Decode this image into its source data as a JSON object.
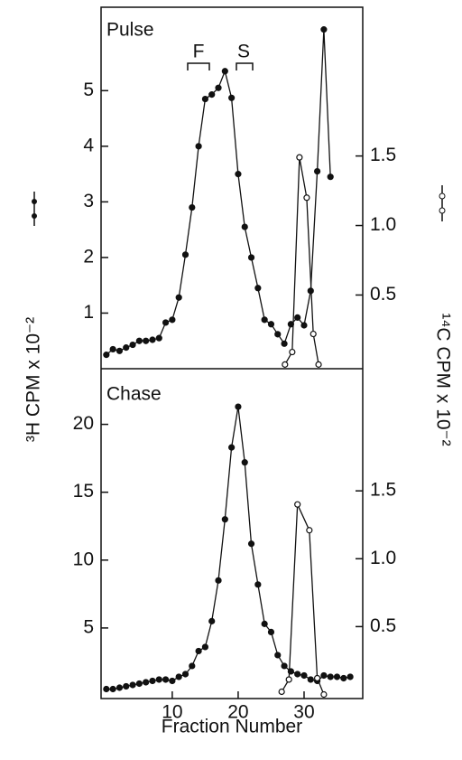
{
  "chart_data": [
    {
      "type": "line",
      "title": "Pulse",
      "annotations": [
        "F",
        "S"
      ],
      "ylabel": "³H CPM x 10⁻²",
      "y2label": "¹⁴C CPM x 10⁻²",
      "xlim": [
        -0.8,
        38.9
      ],
      "ylim": [
        0,
        6.5
      ],
      "yticks": [
        1,
        2,
        3,
        4,
        5
      ],
      "y2lim": [
        -0.03,
        2.57
      ],
      "y2ticks": [
        0.5,
        {
          "value": 1,
          "label": "1.0"
        },
        1.5
      ],
      "series": [
        {
          "color": "#111111",
          "marker": "filled",
          "x": [
            0,
            1,
            2,
            3,
            4,
            5,
            6,
            7,
            8,
            9,
            10,
            11,
            12,
            13,
            14,
            15,
            16,
            17,
            18,
            19,
            20,
            21,
            22,
            23,
            24,
            25,
            26,
            27,
            28,
            29,
            30,
            31,
            32,
            33,
            34,
            35
          ],
          "values": [
            0.25,
            0.35,
            0.32,
            0.38,
            0.43,
            0.5,
            0.5,
            0.52,
            0.55,
            0.83,
            0.88,
            1.28,
            2.05,
            2.9,
            4.0,
            4.85,
            4.93,
            5.05,
            5.35,
            4.87,
            3.5,
            2.55,
            2.0,
            1.45,
            0.88,
            0.8,
            0.62,
            0.45,
            0.8,
            0.92,
            0.78,
            1.4,
            3.55,
            6.1,
            3.45,
            null
          ]
        },
        {
          "color": "#111111",
          "marker": "open",
          "axis": "y2",
          "x": [
            27.1,
            28.2,
            29.3,
            30.4,
            31.4,
            32.2
          ],
          "values": [
            0,
            0.09,
            1.49,
            1.2,
            0.22,
            0
          ]
        }
      ]
    },
    {
      "type": "line",
      "title": "Chase",
      "xlabel": "Fraction Number",
      "xlim": [
        -0.8,
        38.9
      ],
      "xticks": [
        10,
        20,
        30
      ],
      "ylim": [
        -0.2,
        24.1
      ],
      "yticks": [
        5,
        10,
        15,
        20
      ],
      "y2lim": [
        -0.03,
        2.4
      ],
      "y2ticks": [
        0.5,
        {
          "value": 1,
          "label": "1.0"
        },
        1.5
      ],
      "series": [
        {
          "color": "#111111",
          "marker": "filled",
          "x": [
            0,
            1,
            2,
            3,
            4,
            5,
            6,
            7,
            8,
            9,
            10,
            11,
            12,
            13,
            14,
            15,
            16,
            17,
            18,
            19,
            20,
            21,
            22,
            23,
            24,
            25,
            26,
            27,
            28,
            29,
            30,
            31,
            32,
            33,
            34,
            35,
            36,
            37
          ],
          "values": [
            0.5,
            0.5,
            0.6,
            0.7,
            0.8,
            0.9,
            1.0,
            1.1,
            1.2,
            1.2,
            1.1,
            1.4,
            1.6,
            2.2,
            3.3,
            3.6,
            5.5,
            8.5,
            13.0,
            18.3,
            21.3,
            17.2,
            11.2,
            8.2,
            5.3,
            4.7,
            3.0,
            2.2,
            1.8,
            1.6,
            1.5,
            1.2,
            1.1,
            1.5,
            1.4,
            1.4,
            1.3,
            1.4
          ]
        },
        {
          "color": "#111111",
          "marker": "open",
          "axis": "y2",
          "x": [
            26.6,
            27.7,
            29.0,
            30.8,
            32.0,
            33.0
          ],
          "values": [
            0.02,
            0.11,
            1.4,
            1.21,
            0.12,
            0
          ]
        }
      ]
    }
  ]
}
